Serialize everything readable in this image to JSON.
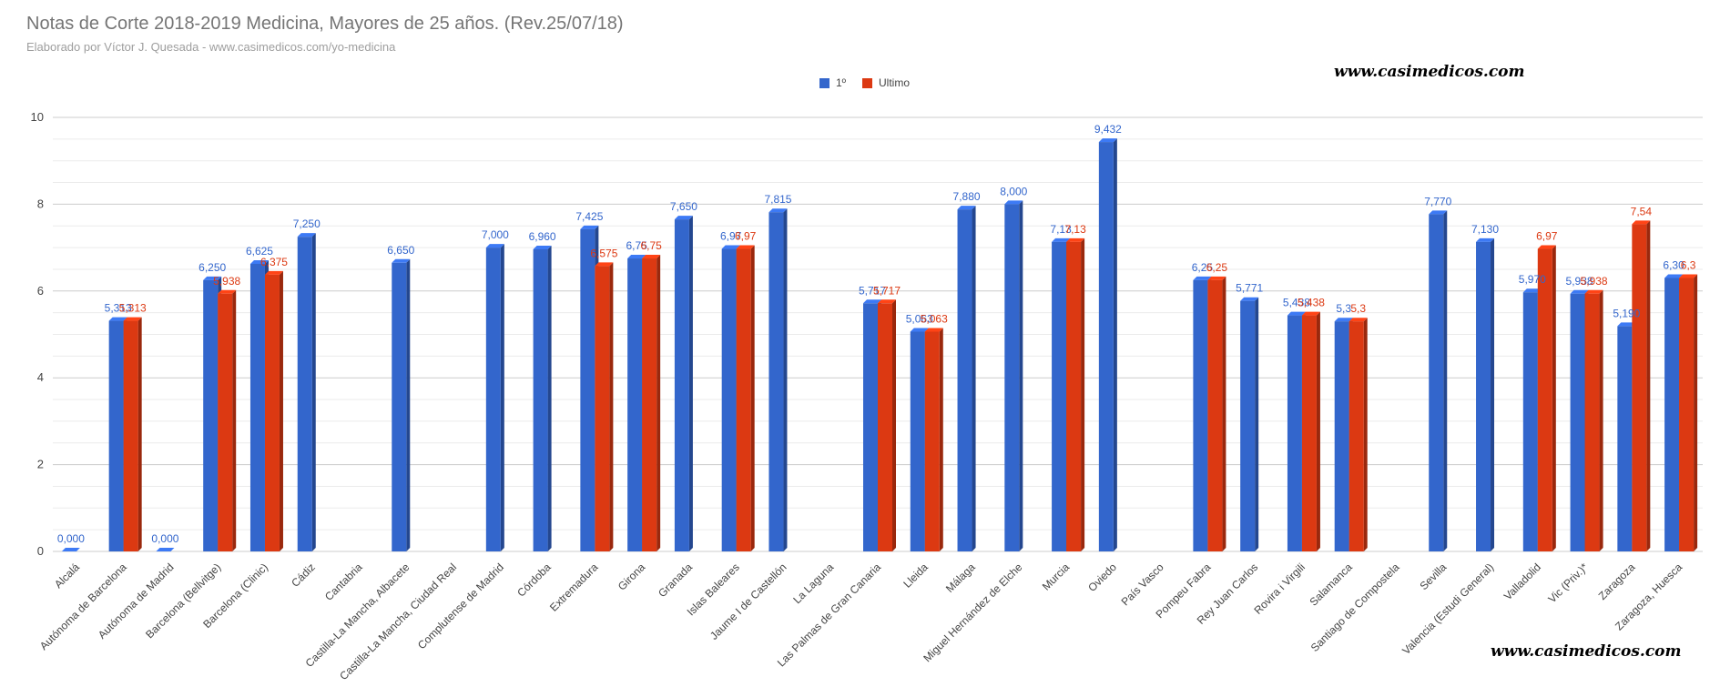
{
  "chart_data": {
    "type": "bar",
    "title": "Notas de Corte 2018-2019 Medicina, Mayores de 25 años. (Rev.25/07/18)",
    "subtitle": "Elaborado por Víctor J. Quesada - www.casimedicos.com/yo-medicina",
    "watermark": "www.casimedicos.com",
    "ylim": [
      0,
      10
    ],
    "yticks": [
      "0",
      "2",
      "4",
      "6",
      "8",
      "10"
    ],
    "grid": true,
    "legend_position": "top",
    "categories": [
      "Alcalá",
      "Autónoma de Barcelona",
      "Autónoma de Madrid",
      "Barcelona (Bellvitge)",
      "Barcelona (Clinic)",
      "Cádiz",
      "Cantabria",
      "Castilla-La Mancha, Albacete",
      "Castilla-La Mancha, Ciudad Real",
      "Complutense de Madrid",
      "Córdoba",
      "Extremadura",
      "Girona",
      "Granada",
      "Islas Baleares",
      "Jaume I de Castellón",
      "La Laguna",
      "Las Palmas de Gran Canaria",
      "Lleida",
      "Málaga",
      "Miguel Hernández de Elche",
      "Murcia",
      "Oviedo",
      "País Vasco",
      "Pompeu Fabra",
      "Rey Juan Carlos",
      "Rovira i Virgili",
      "Salamanca",
      "Santiago de Compostela",
      "Sevilla",
      "Valencia (Estudi General)",
      "Valladolid",
      "Vic (Priv.)*",
      "Zaragoza",
      "Zaragoza, Huesca"
    ],
    "series": [
      {
        "name": "1º",
        "color": "#3366cc",
        "values": [
          0,
          5.313,
          0,
          6.25,
          6.625,
          7.25,
          null,
          6.65,
          null,
          7.0,
          6.96,
          7.425,
          6.75,
          7.65,
          6.97,
          7.815,
          null,
          5.717,
          5.063,
          7.88,
          8.0,
          7.13,
          9.432,
          null,
          6.25,
          5.771,
          5.438,
          5.3,
          null,
          7.77,
          7.13,
          5.97,
          5.938,
          5.19,
          6.3
        ],
        "labels": [
          "0,000",
          "5,313",
          "0,000",
          "6,250",
          "6,625",
          "7,250",
          "",
          "6,650",
          "",
          "7,000",
          "6,960",
          "7,425",
          "6,75",
          "7,650",
          "6,97",
          "7,815",
          "",
          "5,717",
          "5,063",
          "7,880",
          "8,000",
          "7,13",
          "9,432",
          "",
          "6,25",
          "5,771",
          "5,438",
          "5,3",
          "",
          "7,770",
          "7,130",
          "5,970",
          "5,938",
          "5,190",
          "6,30"
        ]
      },
      {
        "name": "Ultimo",
        "color": "#dc3912",
        "values": [
          null,
          5.313,
          null,
          5.938,
          6.375,
          null,
          null,
          null,
          null,
          null,
          null,
          6.575,
          6.75,
          null,
          6.97,
          null,
          null,
          5.717,
          5.063,
          null,
          null,
          7.13,
          null,
          null,
          6.25,
          null,
          5.438,
          5.3,
          null,
          null,
          null,
          6.97,
          5.938,
          7.54,
          6.3
        ],
        "labels": [
          "",
          "5,313",
          "",
          "5,938",
          "6,375",
          "",
          "",
          "",
          "",
          "",
          "",
          "6,575",
          "6,75",
          "",
          "6,97",
          "",
          "",
          "5,717",
          "5,063",
          "",
          "",
          "7,13",
          "",
          "",
          "6,25",
          "",
          "5,438",
          "5,3",
          "",
          "",
          "",
          "6,97",
          "5,938",
          "7,54",
          "6,3"
        ]
      }
    ]
  }
}
